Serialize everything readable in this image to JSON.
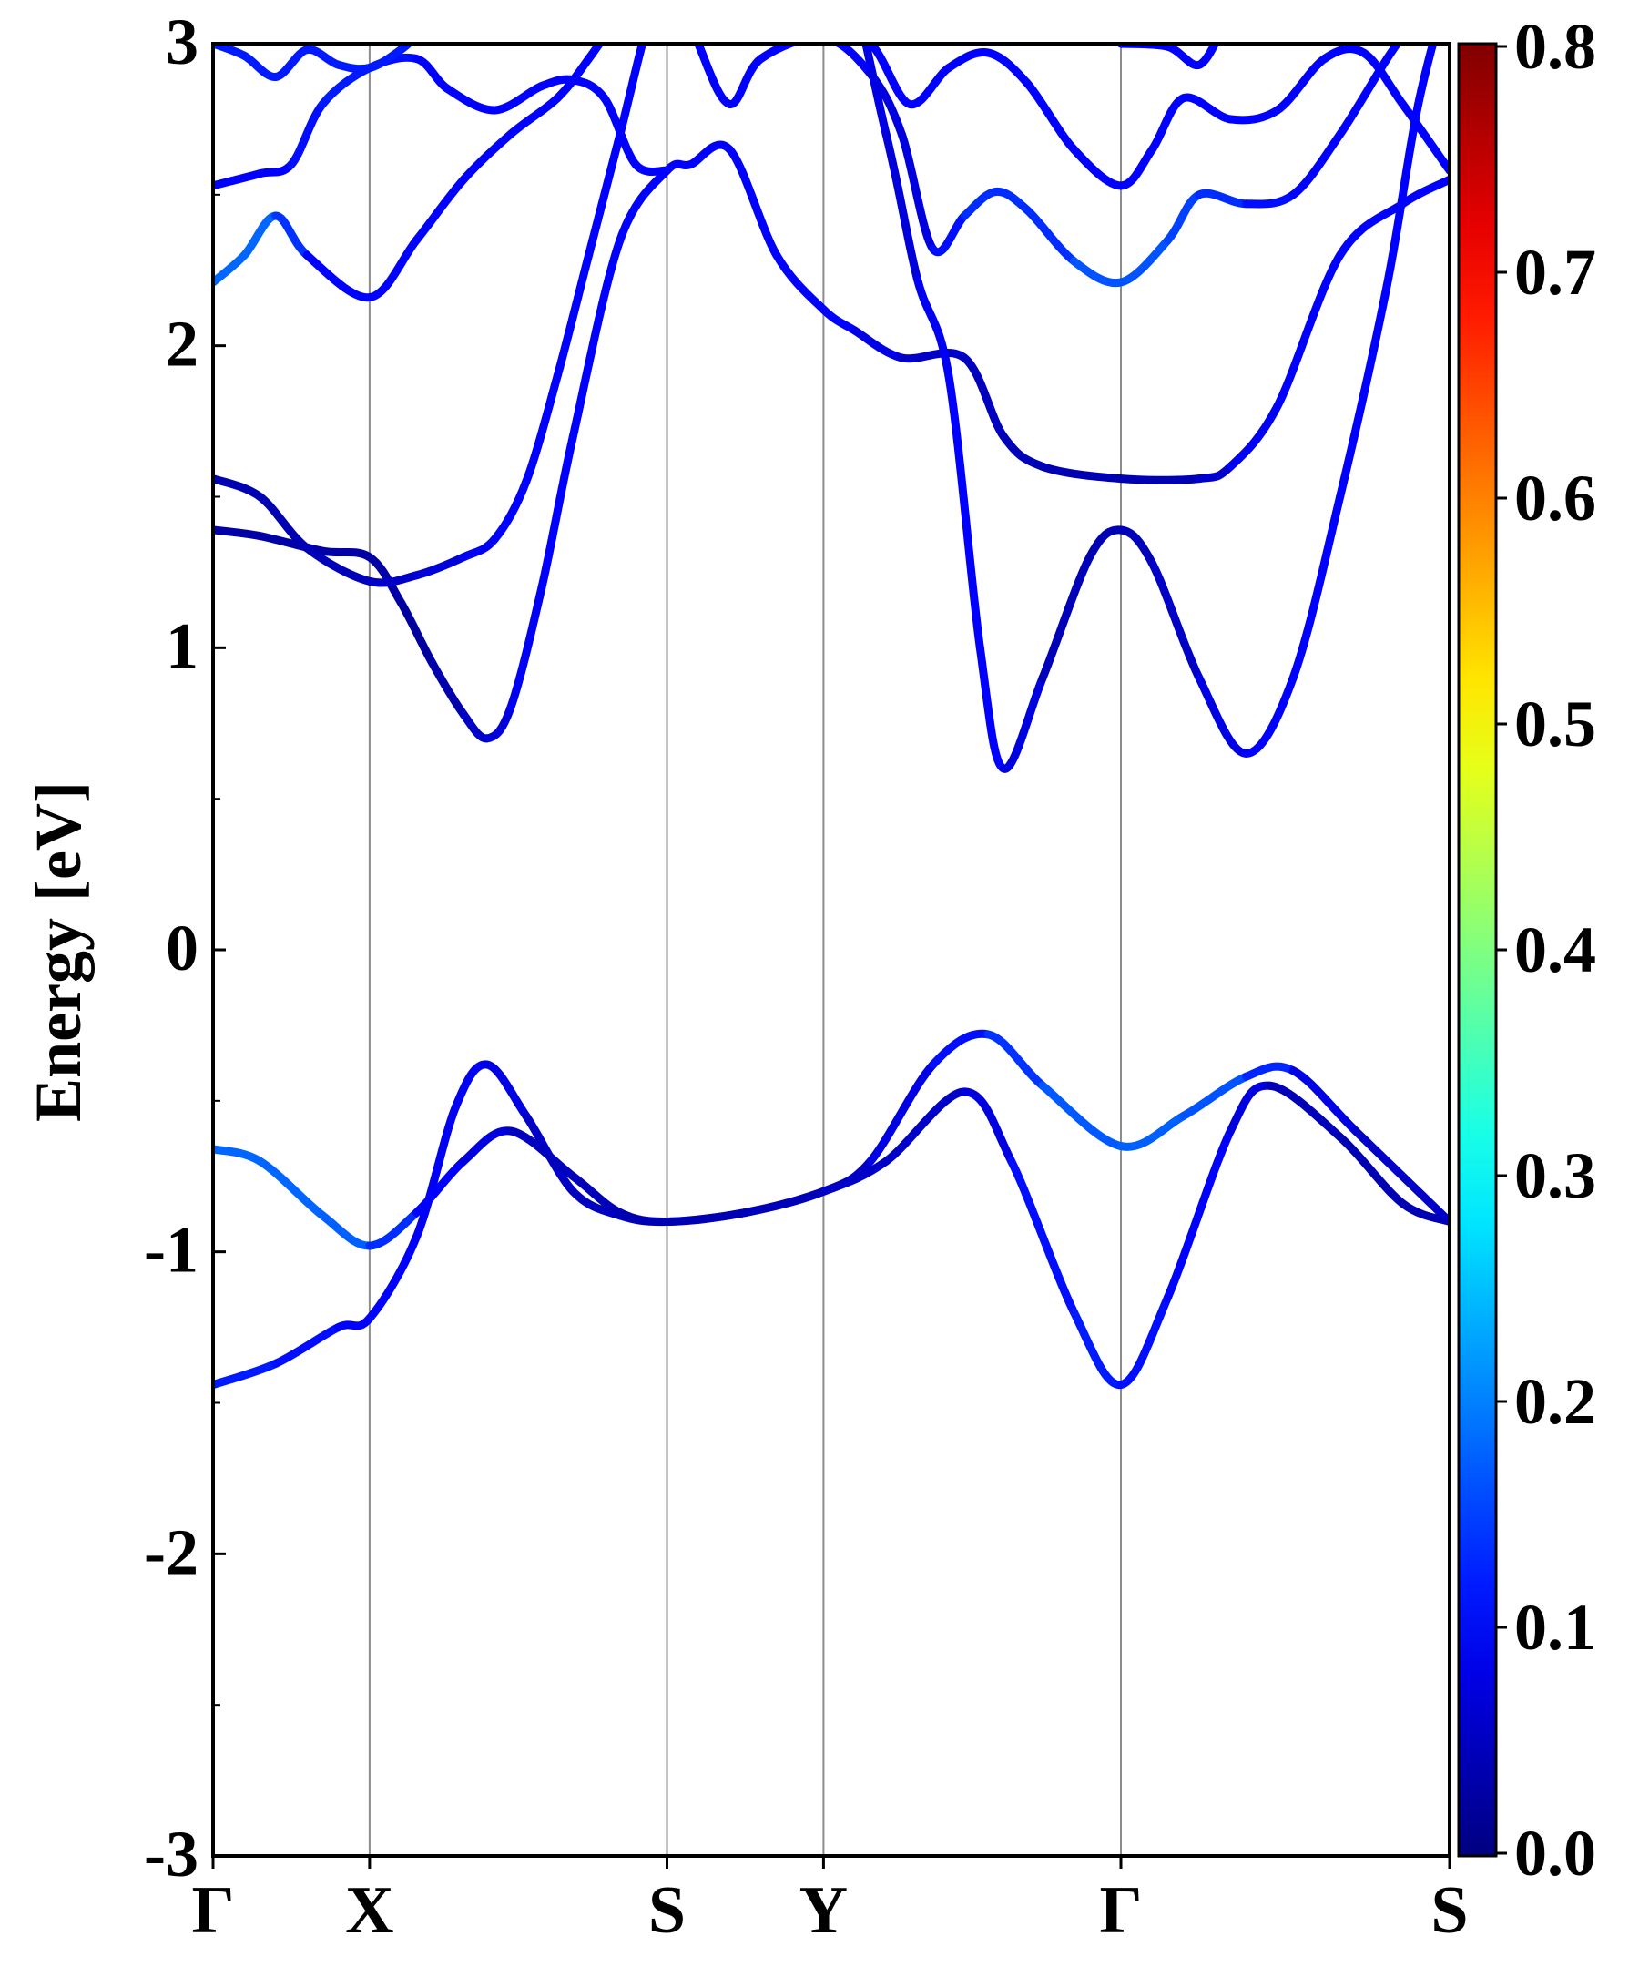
{
  "chart_data": {
    "type": "line",
    "title": "",
    "ylabel": "Energy [eV]",
    "xlabel": "",
    "ylim": [
      -3,
      3
    ],
    "yticks": [
      3,
      2,
      1,
      0,
      -1,
      -2,
      -3
    ],
    "ytick_labels": [
      "3",
      "2",
      "1",
      "0",
      "-1",
      "-2",
      "-3"
    ],
    "kpath": {
      "labels": [
        "Γ",
        "X",
        "S",
        "Y",
        "Γ",
        "S"
      ],
      "positions": [
        0,
        1,
        2.9,
        3.9,
        5.8,
        7.9
      ]
    },
    "colorbar": {
      "colormap": "jet",
      "range": [
        0.0,
        0.8
      ],
      "ticks": [
        0.8,
        0.7,
        0.6,
        0.5,
        0.4,
        0.3,
        0.2,
        0.1,
        0.0
      ],
      "tick_labels": [
        "0.8",
        "0.7",
        "0.6",
        "0.5",
        "0.4",
        "0.3",
        "0.2",
        "0.1",
        "0.0"
      ]
    },
    "series": [
      {
        "points": [
          [
            0,
            -1.44
          ],
          [
            0.4,
            -1.37
          ],
          [
            0.8,
            -1.25
          ],
          [
            1,
            -1.22
          ],
          [
            1.3,
            -0.95
          ],
          [
            1.55,
            -0.52
          ],
          [
            1.75,
            -0.38
          ],
          [
            2.0,
            -0.55
          ],
          [
            2.3,
            -0.8
          ],
          [
            2.6,
            -0.88
          ],
          [
            2.9,
            -0.9
          ],
          [
            3.4,
            -0.87
          ],
          [
            3.9,
            -0.8
          ],
          [
            4.3,
            -0.7
          ],
          [
            4.8,
            -0.47
          ],
          [
            5.1,
            -0.7
          ],
          [
            5.5,
            -1.2
          ],
          [
            5.8,
            -1.44
          ],
          [
            6.1,
            -1.15
          ],
          [
            6.5,
            -0.6
          ],
          [
            6.75,
            -0.45
          ],
          [
            7.2,
            -0.62
          ],
          [
            7.6,
            -0.84
          ],
          [
            7.9,
            -0.9
          ]
        ],
        "colors": [
          0.12,
          0.12,
          0.1,
          0.1,
          0.1,
          0.08,
          0.1,
          0.06,
          0.05,
          0.05,
          0.05,
          0.05,
          0.05,
          0.06,
          0.05,
          0.1,
          0.12,
          0.12,
          0.1,
          0.1,
          0.05,
          0.04,
          0.04,
          0.04
        ]
      },
      {
        "points": [
          [
            0,
            -0.66
          ],
          [
            0.3,
            -0.7
          ],
          [
            0.7,
            -0.88
          ],
          [
            1,
            -0.98
          ],
          [
            1.3,
            -0.87
          ],
          [
            1.6,
            -0.7
          ],
          [
            1.9,
            -0.6
          ],
          [
            2.3,
            -0.75
          ],
          [
            2.6,
            -0.87
          ],
          [
            2.9,
            -0.9
          ],
          [
            3.4,
            -0.87
          ],
          [
            3.9,
            -0.8
          ],
          [
            4.2,
            -0.7
          ],
          [
            4.6,
            -0.38
          ],
          [
            4.95,
            -0.28
          ],
          [
            5.3,
            -0.45
          ],
          [
            5.8,
            -0.65
          ],
          [
            6.2,
            -0.55
          ],
          [
            6.6,
            -0.42
          ],
          [
            6.9,
            -0.4
          ],
          [
            7.3,
            -0.6
          ],
          [
            7.9,
            -0.9
          ]
        ],
        "colors": [
          0.18,
          0.18,
          0.18,
          0.17,
          0.1,
          0.1,
          0.05,
          0.05,
          0.04,
          0.04,
          0.04,
          0.05,
          0.06,
          0.1,
          0.12,
          0.16,
          0.18,
          0.17,
          0.16,
          0.1,
          0.06,
          0.05
        ]
      },
      {
        "points": [
          [
            0,
            1.39
          ],
          [
            0.3,
            1.37
          ],
          [
            0.7,
            1.32
          ],
          [
            1,
            1.3
          ],
          [
            1.2,
            1.15
          ],
          [
            1.4,
            0.95
          ],
          [
            1.6,
            0.78
          ],
          [
            1.75,
            0.7
          ],
          [
            1.9,
            0.8
          ],
          [
            2.1,
            1.2
          ],
          [
            2.3,
            1.7
          ],
          [
            2.6,
            2.35
          ],
          [
            2.9,
            2.58
          ],
          [
            3.05,
            2.6
          ],
          [
            3.3,
            2.65
          ],
          [
            3.6,
            2.3
          ],
          [
            3.9,
            2.12
          ],
          [
            4.1,
            2.05
          ],
          [
            4.4,
            1.96
          ],
          [
            4.8,
            1.96
          ],
          [
            5.05,
            1.7
          ],
          [
            5.3,
            1.6
          ],
          [
            5.8,
            1.56
          ],
          [
            6.3,
            1.56
          ],
          [
            6.5,
            1.6
          ],
          [
            6.8,
            1.8
          ],
          [
            7.2,
            2.3
          ],
          [
            7.6,
            2.47
          ],
          [
            7.9,
            2.55
          ]
        ],
        "colors": [
          0.03,
          0.03,
          0.03,
          0.03,
          0.03,
          0.02,
          0.05,
          0.06,
          0.08,
          0.1,
          0.1,
          0.1,
          0.1,
          0.1,
          0.1,
          0.1,
          0.1,
          0.1,
          0.06,
          0.05,
          0.05,
          0.04,
          0.04,
          0.04,
          0.08,
          0.1,
          0.1,
          0.1,
          0.1
        ]
      },
      {
        "points": [
          [
            0,
            1.56
          ],
          [
            0.3,
            1.5
          ],
          [
            0.6,
            1.33
          ],
          [
            1,
            1.22
          ],
          [
            1.3,
            1.24
          ],
          [
            1.6,
            1.3
          ],
          [
            1.8,
            1.36
          ],
          [
            2.0,
            1.55
          ],
          [
            2.2,
            1.9
          ],
          [
            2.4,
            2.3
          ],
          [
            2.6,
            2.7
          ],
          [
            2.8,
            3.1
          ],
          [
            3.0,
            3.3
          ],
          [
            3.3,
            3.1
          ],
          [
            3.6,
            3.2
          ],
          [
            3.9,
            3.5
          ],
          [
            4.3,
            2.7
          ],
          [
            4.5,
            2.22
          ],
          [
            4.7,
            1.9
          ],
          [
            4.9,
            1.0
          ],
          [
            5.05,
            0.6
          ],
          [
            5.3,
            0.9
          ],
          [
            5.6,
            1.3
          ],
          [
            5.8,
            1.39
          ],
          [
            6.0,
            1.28
          ],
          [
            6.3,
            0.9
          ],
          [
            6.6,
            0.65
          ],
          [
            6.9,
            0.9
          ],
          [
            7.2,
            1.5
          ],
          [
            7.5,
            2.2
          ],
          [
            7.7,
            2.8
          ],
          [
            7.9,
            3.2
          ]
        ],
        "colors": [
          0.04,
          0.04,
          0.04,
          0.05,
          0.06,
          0.08,
          0.1,
          0.1,
          0.1,
          0.1,
          0.1,
          0.1,
          0.1,
          0.1,
          0.1,
          0.1,
          0.06,
          0.08,
          0.1,
          0.1,
          0.1,
          0.05,
          0.04,
          0.04,
          0.05,
          0.06,
          0.1,
          0.1,
          0.1,
          0.1,
          0.1,
          0.1
        ]
      },
      {
        "points": [
          [
            0,
            2.21
          ],
          [
            0.2,
            2.3
          ],
          [
            0.4,
            2.43
          ],
          [
            0.6,
            2.3
          ],
          [
            1,
            2.16
          ],
          [
            1.3,
            2.35
          ],
          [
            1.6,
            2.55
          ],
          [
            1.9,
            2.7
          ],
          [
            2.2,
            2.82
          ],
          [
            2.4,
            2.95
          ],
          [
            2.6,
            3.1
          ]
        ],
        "colors": [
          0.18,
          0.18,
          0.18,
          0.1,
          0.1,
          0.1,
          0.1,
          0.1,
          0.1,
          0.1,
          0.1
        ]
      },
      {
        "points": [
          [
            0,
            2.53
          ],
          [
            0.3,
            2.57
          ],
          [
            0.5,
            2.6
          ],
          [
            0.7,
            2.8
          ],
          [
            1,
            2.92
          ],
          [
            1.3,
            2.95
          ],
          [
            1.5,
            2.85
          ],
          [
            1.8,
            2.78
          ],
          [
            2.1,
            2.86
          ],
          [
            2.3,
            2.88
          ],
          [
            2.5,
            2.82
          ],
          [
            2.7,
            2.6
          ],
          [
            2.9,
            2.58
          ]
        ],
        "colors": [
          0.1,
          0.1,
          0.1,
          0.12,
          0.12,
          0.1,
          0.1,
          0.1,
          0.1,
          0.1,
          0.1,
          0.1,
          0.1
        ]
      },
      {
        "points": [
          [
            0,
            3.0
          ],
          [
            0.2,
            2.96
          ],
          [
            0.4,
            2.89
          ],
          [
            0.6,
            2.98
          ],
          [
            0.8,
            2.93
          ],
          [
            1,
            2.92
          ],
          [
            1.2,
            2.98
          ],
          [
            1.35,
            3.05
          ]
        ],
        "colors": [
          0.12,
          0.12,
          0.12,
          0.12,
          0.12,
          0.12,
          0.12,
          0.12
        ]
      },
      {
        "points": [
          [
            2.9,
            3.3
          ],
          [
            3.1,
            3.0
          ],
          [
            3.3,
            2.8
          ],
          [
            3.5,
            2.95
          ],
          [
            3.9,
            3.02
          ],
          [
            4.2,
            2.9
          ],
          [
            4.4,
            2.7
          ],
          [
            4.6,
            2.32
          ],
          [
            4.8,
            2.43
          ],
          [
            5.0,
            2.51
          ],
          [
            5.2,
            2.45
          ],
          [
            5.5,
            2.28
          ],
          [
            5.8,
            2.21
          ],
          [
            6.1,
            2.35
          ],
          [
            6.3,
            2.5
          ],
          [
            6.6,
            2.47
          ],
          [
            6.9,
            2.5
          ],
          [
            7.2,
            2.7
          ],
          [
            7.5,
            2.95
          ],
          [
            7.7,
            3.1
          ]
        ],
        "colors": [
          0.1,
          0.1,
          0.1,
          0.1,
          0.1,
          0.1,
          0.05,
          0.1,
          0.12,
          0.15,
          0.12,
          0.15,
          0.18,
          0.15,
          0.15,
          0.12,
          0.1,
          0.1,
          0.1,
          0.1
        ]
      },
      {
        "points": [
          [
            3.9,
            3.05
          ],
          [
            4.2,
            3.0
          ],
          [
            4.45,
            2.8
          ],
          [
            4.7,
            2.92
          ],
          [
            4.95,
            2.97
          ],
          [
            5.2,
            2.87
          ],
          [
            5.5,
            2.65
          ],
          [
            5.8,
            2.53
          ],
          [
            6.0,
            2.65
          ],
          [
            6.2,
            2.82
          ],
          [
            6.5,
            2.75
          ],
          [
            6.8,
            2.78
          ],
          [
            7.1,
            2.95
          ],
          [
            7.35,
            2.97
          ],
          [
            7.6,
            2.8
          ],
          [
            7.9,
            2.58
          ]
        ],
        "colors": [
          0.1,
          0.1,
          0.1,
          0.1,
          0.1,
          0.1,
          0.1,
          0.1,
          0.1,
          0.1,
          0.1,
          0.1,
          0.1,
          0.1,
          0.1,
          0.1
        ]
      },
      {
        "points": [
          [
            5.8,
            3.0
          ],
          [
            6.1,
            2.99
          ],
          [
            6.3,
            2.93
          ],
          [
            6.45,
            3.05
          ]
        ],
        "colors": [
          0.1,
          0.1,
          0.1,
          0.1
        ]
      }
    ]
  }
}
